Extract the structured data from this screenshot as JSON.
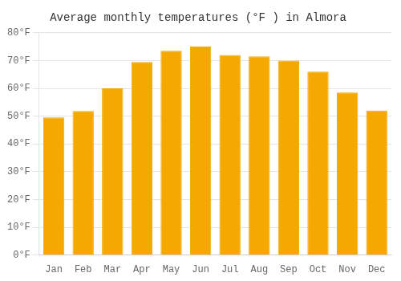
{
  "chart_data": {
    "type": "bar",
    "title": "Average monthly temperatures (°F ) in Almora",
    "categories": [
      "Jan",
      "Feb",
      "Mar",
      "Apr",
      "May",
      "Jun",
      "Jul",
      "Aug",
      "Sep",
      "Oct",
      "Nov",
      "Dec"
    ],
    "values": [
      49.5,
      51.8,
      60.0,
      69.5,
      73.5,
      75.0,
      72.0,
      71.5,
      70.0,
      66.0,
      58.5,
      52.0
    ],
    "color": "#F5A800",
    "ylim": [
      0,
      80
    ],
    "yticks": [
      {
        "value": 0,
        "label": "0°F"
      },
      {
        "value": 10,
        "label": "10°F"
      },
      {
        "value": 20,
        "label": "20°F"
      },
      {
        "value": 30,
        "label": "30°F"
      },
      {
        "value": 40,
        "label": "40°F"
      },
      {
        "value": 50,
        "label": "50°F"
      },
      {
        "value": 60,
        "label": "60°F"
      },
      {
        "value": 70,
        "label": "70°F"
      },
      {
        "value": 80,
        "label": "80°F"
      }
    ],
    "grid": true
  }
}
